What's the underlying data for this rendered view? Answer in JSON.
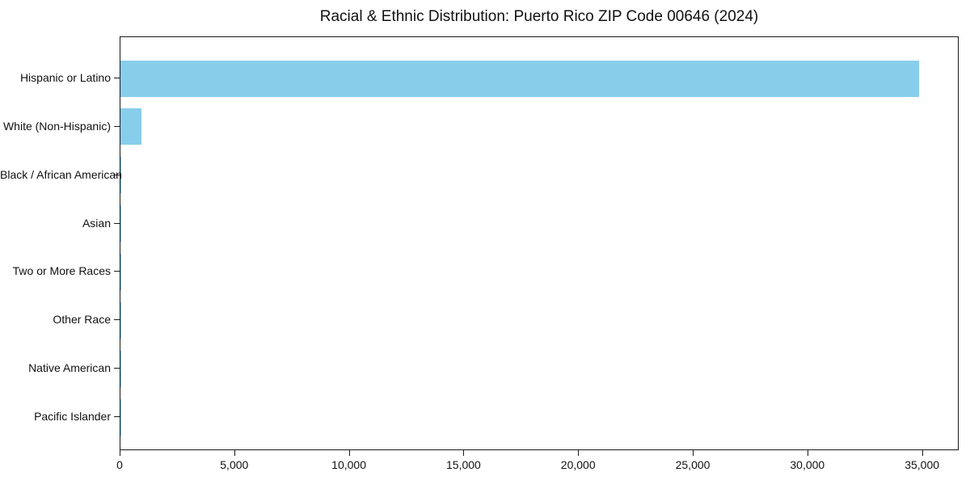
{
  "chart_data": {
    "type": "bar",
    "orientation": "horizontal",
    "title": "Racial & Ethnic Distribution: Puerto Rico ZIP Code 00646 (2024)",
    "categories": [
      "Hispanic or Latino",
      "White (Non-Hispanic)",
      "Black / African American",
      "Asian",
      "Two or More Races",
      "Other Race",
      "Native American",
      "Pacific Islander"
    ],
    "values": [
      34850,
      930,
      25,
      12,
      18,
      10,
      5,
      2
    ],
    "bar_color": "#87CEEB",
    "xlabel": "",
    "ylabel": "",
    "xlim": [
      0,
      36600
    ],
    "xticks": [
      0,
      5000,
      10000,
      15000,
      20000,
      25000,
      30000,
      35000
    ],
    "xtick_labels": [
      "0",
      "5,000",
      "10,000",
      "15,000",
      "20,000",
      "25,000",
      "30,000",
      "35,000"
    ],
    "grid": false,
    "legend": "none",
    "background_color": "#ffffff",
    "spine_color": "#1a1a1a"
  }
}
